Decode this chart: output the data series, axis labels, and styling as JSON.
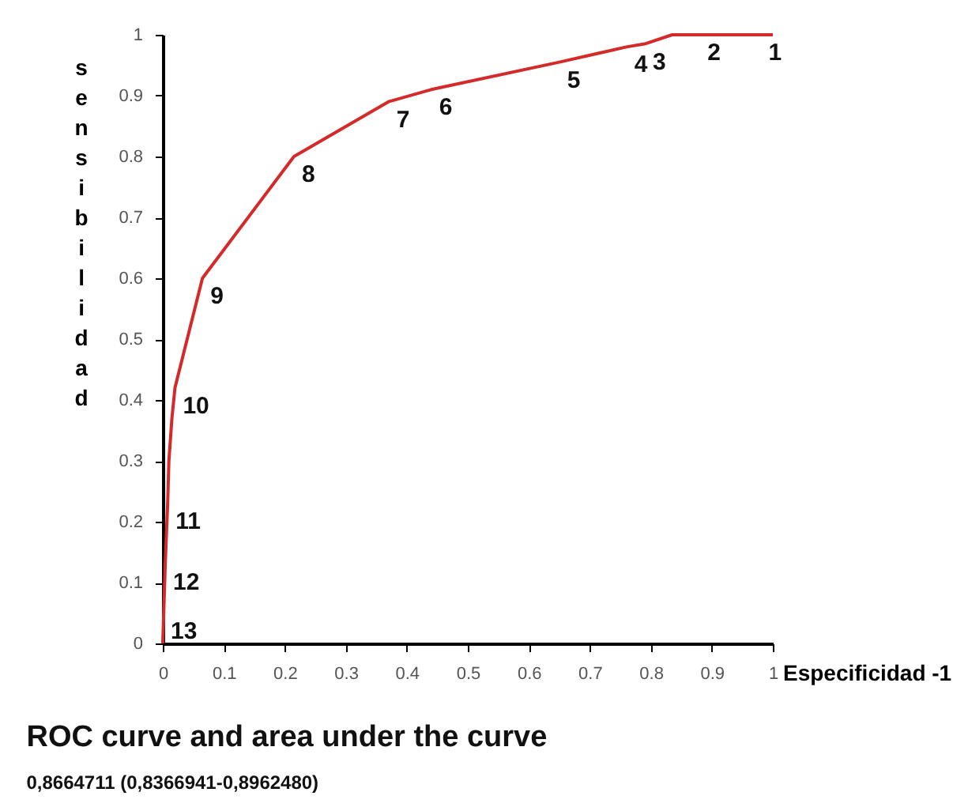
{
  "chart_data": {
    "type": "line",
    "title": "ROC curve and area under the curve",
    "subtitle": "0,8664711 (0,8366941-0,8962480)",
    "xlabel": "Especificidad -1",
    "ylabel": "sensibilidad",
    "x": [
      0,
      0.004,
      0.008,
      0.01,
      0.015,
      0.02,
      0.065,
      0.215,
      0.37,
      0.44,
      0.65,
      0.76,
      0.79,
      0.835,
      0.9,
      0.97,
      1
    ],
    "series": [
      {
        "color": "#d42a2a",
        "values": [
          0,
          0.13,
          0.23,
          0.3,
          0.37,
          0.42,
          0.6,
          0.8,
          0.89,
          0.91,
          0.955,
          0.98,
          0.985,
          1,
          1,
          1,
          1
        ]
      }
    ],
    "annotations": [
      {
        "text": "1",
        "x": 0.98,
        "y": 1
      },
      {
        "text": "2",
        "x": 0.88,
        "y": 1
      },
      {
        "text": "3",
        "x": 0.79,
        "y": 0.985
      },
      {
        "text": "4",
        "x": 0.76,
        "y": 0.98
      },
      {
        "text": "5",
        "x": 0.65,
        "y": 0.955
      },
      {
        "text": "6",
        "x": 0.44,
        "y": 0.91
      },
      {
        "text": "7",
        "x": 0.37,
        "y": 0.89
      },
      {
        "text": "8",
        "x": 0.215,
        "y": 0.8
      },
      {
        "text": "9",
        "x": 0.065,
        "y": 0.6
      },
      {
        "text": "10",
        "x": 0.02,
        "y": 0.42
      },
      {
        "text": "11",
        "x": 0.008,
        "y": 0.23
      },
      {
        "text": "12",
        "x": 0.004,
        "y": 0.13
      },
      {
        "text": "13",
        "x": 0,
        "y": 0.05
      }
    ],
    "xlim": [
      0,
      1
    ],
    "ylim": [
      0,
      1
    ],
    "xticks": [
      0,
      0.1,
      0.2,
      0.3,
      0.4,
      0.5,
      0.6,
      0.7,
      0.8,
      0.9,
      1
    ],
    "yticks": [
      0,
      0.1,
      0.2,
      0.3,
      0.4,
      0.5,
      0.6,
      0.7,
      0.8,
      0.9,
      1
    ],
    "grid": false,
    "marker": "none",
    "line_style": "solid"
  }
}
